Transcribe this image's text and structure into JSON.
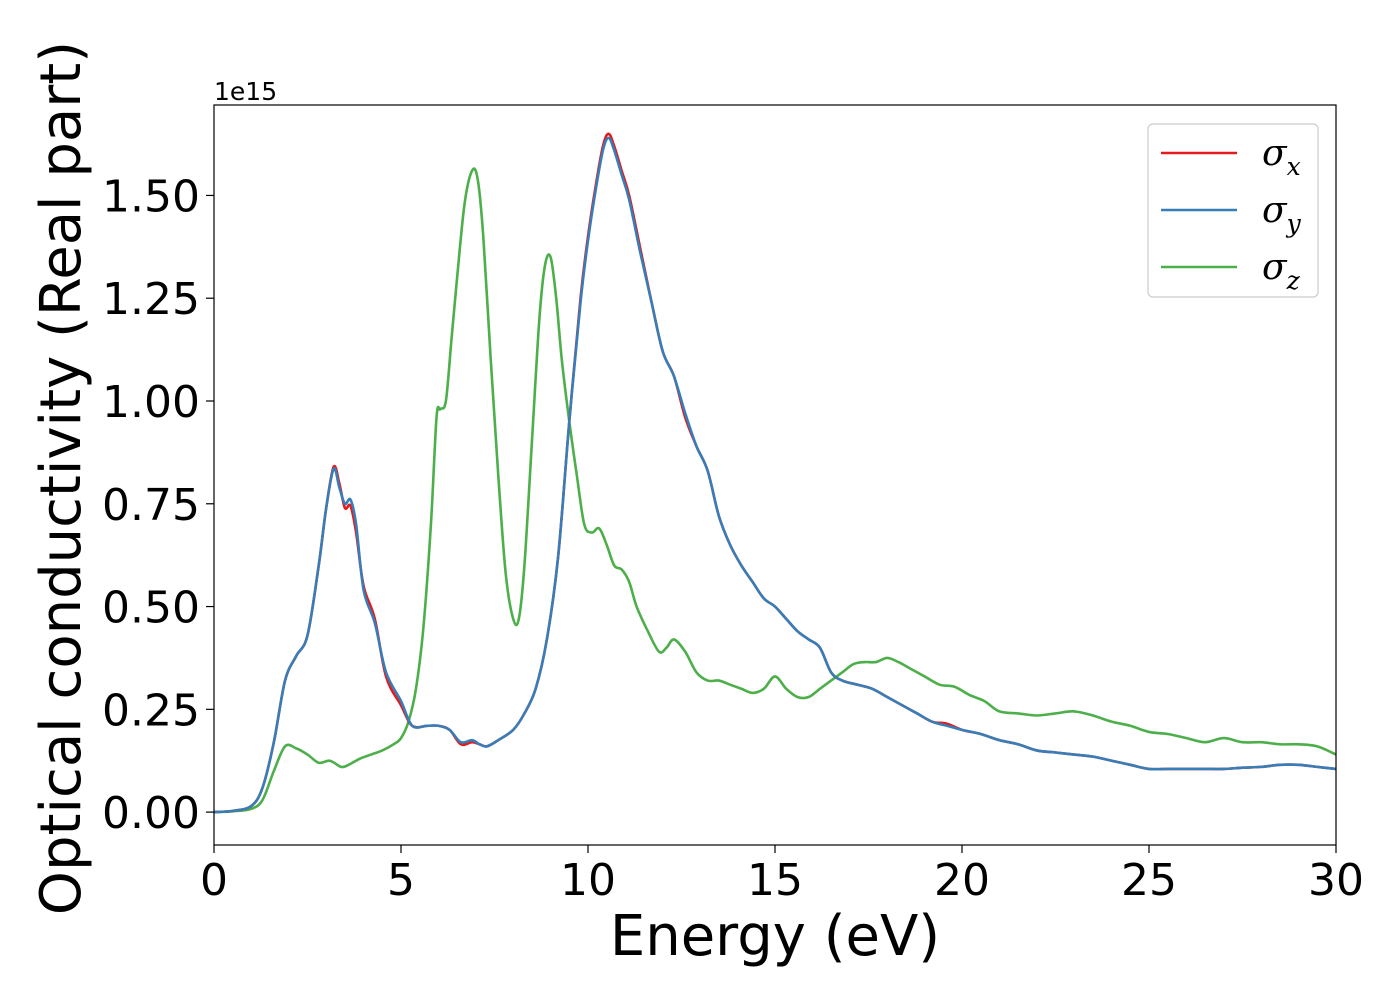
{
  "chart_data": {
    "type": "line",
    "xlabel": "Energy (eV)",
    "ylabel": "Optical conductivity (Real part)",
    "y_offset_text": "1e15",
    "xlim": [
      0,
      30
    ],
    "ylim": [
      -0.08,
      1.72
    ],
    "y_scale_factor": 1000000000000000.0,
    "x_ticks": [
      0,
      5,
      10,
      15,
      20,
      25,
      30
    ],
    "x_tick_labels": [
      "0",
      "5",
      "10",
      "15",
      "20",
      "25",
      "30"
    ],
    "y_ticks": [
      0.0,
      0.25,
      0.5,
      0.75,
      1.0,
      1.25,
      1.5
    ],
    "y_tick_labels": [
      "0.00",
      "0.25",
      "0.50",
      "0.75",
      "1.00",
      "1.25",
      "1.50"
    ],
    "grid": false,
    "legend_position": "top-right",
    "series": [
      {
        "name": "σx",
        "legend_symbol": "σ",
        "legend_subscript": "x",
        "color": "#e41a1c",
        "x": [
          0,
          0.5,
          1.0,
          1.3,
          1.6,
          1.9,
          2.2,
          2.5,
          2.8,
          3.0,
          3.2,
          3.35,
          3.5,
          3.65,
          3.8,
          4.0,
          4.3,
          4.6,
          5.0,
          5.3,
          5.7,
          6.0,
          6.3,
          6.6,
          6.9,
          7.1,
          7.3,
          7.6,
          8.0,
          8.3,
          8.6,
          8.9,
          9.2,
          9.5,
          9.8,
          10.0,
          10.2,
          10.4,
          10.55,
          10.7,
          10.9,
          11.1,
          11.4,
          11.7,
          12.0,
          12.3,
          12.6,
          12.9,
          13.2,
          13.5,
          13.8,
          14.1,
          14.4,
          14.7,
          15.0,
          15.3,
          15.6,
          15.9,
          16.2,
          16.5,
          16.8,
          17.2,
          17.6,
          18.0,
          18.4,
          18.8,
          19.2,
          19.6,
          20.0,
          20.5,
          21.0,
          21.5,
          22.0,
          22.5,
          23.0,
          23.5,
          24.0,
          24.5,
          25.0,
          25.5,
          26.0,
          26.5,
          27.0,
          27.5,
          28.0,
          28.5,
          29.0,
          29.5,
          30.0
        ],
        "y": [
          0.0,
          0.003,
          0.015,
          0.06,
          0.17,
          0.32,
          0.38,
          0.43,
          0.6,
          0.74,
          0.84,
          0.8,
          0.74,
          0.745,
          0.68,
          0.55,
          0.47,
          0.33,
          0.26,
          0.21,
          0.21,
          0.21,
          0.2,
          0.165,
          0.17,
          0.165,
          0.16,
          0.175,
          0.2,
          0.24,
          0.3,
          0.42,
          0.62,
          0.95,
          1.25,
          1.4,
          1.52,
          1.62,
          1.65,
          1.62,
          1.56,
          1.5,
          1.37,
          1.24,
          1.12,
          1.06,
          0.96,
          0.89,
          0.83,
          0.72,
          0.65,
          0.6,
          0.56,
          0.52,
          0.5,
          0.47,
          0.44,
          0.42,
          0.4,
          0.34,
          0.32,
          0.31,
          0.3,
          0.28,
          0.26,
          0.24,
          0.22,
          0.215,
          0.2,
          0.19,
          0.175,
          0.165,
          0.15,
          0.145,
          0.14,
          0.135,
          0.125,
          0.115,
          0.105,
          0.105,
          0.105,
          0.105,
          0.105,
          0.108,
          0.11,
          0.115,
          0.115,
          0.11,
          0.105
        ]
      },
      {
        "name": "σy",
        "legend_symbol": "σ",
        "legend_subscript": "y",
        "color": "#377eb8",
        "x": [
          0,
          0.5,
          1.0,
          1.3,
          1.6,
          1.9,
          2.2,
          2.5,
          2.8,
          3.0,
          3.2,
          3.35,
          3.5,
          3.65,
          3.8,
          4.0,
          4.3,
          4.6,
          5.0,
          5.3,
          5.7,
          6.0,
          6.3,
          6.6,
          6.9,
          7.1,
          7.3,
          7.6,
          8.0,
          8.3,
          8.6,
          8.9,
          9.2,
          9.5,
          9.8,
          10.0,
          10.2,
          10.4,
          10.55,
          10.7,
          10.9,
          11.1,
          11.4,
          11.7,
          12.0,
          12.3,
          12.6,
          12.9,
          13.2,
          13.5,
          13.8,
          14.1,
          14.4,
          14.7,
          15.0,
          15.3,
          15.6,
          15.9,
          16.2,
          16.5,
          16.8,
          17.2,
          17.6,
          18.0,
          18.4,
          18.8,
          19.2,
          19.6,
          20.0,
          20.5,
          21.0,
          21.5,
          22.0,
          22.5,
          23.0,
          23.5,
          24.0,
          24.5,
          25.0,
          25.5,
          26.0,
          26.5,
          27.0,
          27.5,
          28.0,
          28.5,
          29.0,
          29.5,
          30.0
        ],
        "y": [
          0.0,
          0.003,
          0.015,
          0.06,
          0.17,
          0.32,
          0.38,
          0.43,
          0.6,
          0.74,
          0.835,
          0.79,
          0.75,
          0.76,
          0.7,
          0.54,
          0.46,
          0.34,
          0.27,
          0.21,
          0.21,
          0.21,
          0.2,
          0.17,
          0.175,
          0.165,
          0.16,
          0.175,
          0.2,
          0.24,
          0.3,
          0.42,
          0.62,
          0.95,
          1.24,
          1.39,
          1.51,
          1.61,
          1.64,
          1.61,
          1.55,
          1.49,
          1.36,
          1.24,
          1.12,
          1.06,
          0.97,
          0.89,
          0.83,
          0.72,
          0.65,
          0.6,
          0.56,
          0.52,
          0.5,
          0.47,
          0.44,
          0.42,
          0.4,
          0.34,
          0.32,
          0.31,
          0.3,
          0.28,
          0.26,
          0.24,
          0.22,
          0.21,
          0.2,
          0.19,
          0.175,
          0.165,
          0.15,
          0.145,
          0.14,
          0.135,
          0.125,
          0.115,
          0.105,
          0.105,
          0.105,
          0.105,
          0.105,
          0.108,
          0.11,
          0.115,
          0.115,
          0.11,
          0.105
        ]
      },
      {
        "name": "σz",
        "legend_symbol": "σ",
        "legend_subscript": "z",
        "color": "#4daf4a",
        "x": [
          0,
          0.5,
          1.0,
          1.3,
          1.6,
          1.9,
          2.2,
          2.5,
          2.8,
          3.1,
          3.4,
          3.6,
          3.9,
          4.2,
          4.5,
          4.8,
          5.0,
          5.2,
          5.4,
          5.6,
          5.8,
          5.95,
          6.05,
          6.2,
          6.35,
          6.5,
          6.7,
          6.9,
          7.05,
          7.2,
          7.4,
          7.6,
          7.8,
          8.0,
          8.15,
          8.3,
          8.5,
          8.7,
          8.85,
          9.0,
          9.15,
          9.3,
          9.5,
          9.7,
          9.9,
          10.1,
          10.3,
          10.5,
          10.7,
          10.9,
          11.1,
          11.3,
          11.6,
          11.9,
          12.1,
          12.3,
          12.6,
          12.9,
          13.2,
          13.5,
          13.8,
          14.1,
          14.4,
          14.7,
          15.0,
          15.3,
          15.6,
          15.9,
          16.2,
          16.5,
          16.8,
          17.1,
          17.4,
          17.7,
          18.0,
          18.3,
          18.6,
          19.0,
          19.4,
          19.8,
          20.2,
          20.6,
          21.0,
          21.5,
          22.0,
          22.5,
          23.0,
          23.5,
          24.0,
          24.5,
          25.0,
          25.5,
          26.0,
          26.5,
          27.0,
          27.5,
          28.0,
          28.5,
          29.0,
          29.5,
          30.0
        ],
        "y": [
          0.0,
          0.002,
          0.008,
          0.03,
          0.1,
          0.16,
          0.155,
          0.14,
          0.12,
          0.125,
          0.11,
          0.115,
          0.13,
          0.14,
          0.15,
          0.165,
          0.18,
          0.22,
          0.3,
          0.45,
          0.7,
          0.96,
          0.98,
          1.0,
          1.15,
          1.3,
          1.48,
          1.56,
          1.54,
          1.4,
          1.1,
          0.82,
          0.58,
          0.47,
          0.47,
          0.6,
          0.9,
          1.2,
          1.33,
          1.35,
          1.25,
          1.1,
          0.95,
          0.82,
          0.7,
          0.68,
          0.69,
          0.65,
          0.6,
          0.59,
          0.56,
          0.5,
          0.44,
          0.39,
          0.4,
          0.42,
          0.39,
          0.34,
          0.32,
          0.32,
          0.31,
          0.3,
          0.29,
          0.3,
          0.33,
          0.3,
          0.28,
          0.28,
          0.3,
          0.32,
          0.34,
          0.36,
          0.365,
          0.365,
          0.375,
          0.365,
          0.35,
          0.33,
          0.31,
          0.305,
          0.285,
          0.27,
          0.245,
          0.24,
          0.235,
          0.24,
          0.245,
          0.235,
          0.22,
          0.21,
          0.195,
          0.19,
          0.18,
          0.17,
          0.18,
          0.17,
          0.17,
          0.165,
          0.165,
          0.16,
          0.14
        ]
      }
    ]
  }
}
